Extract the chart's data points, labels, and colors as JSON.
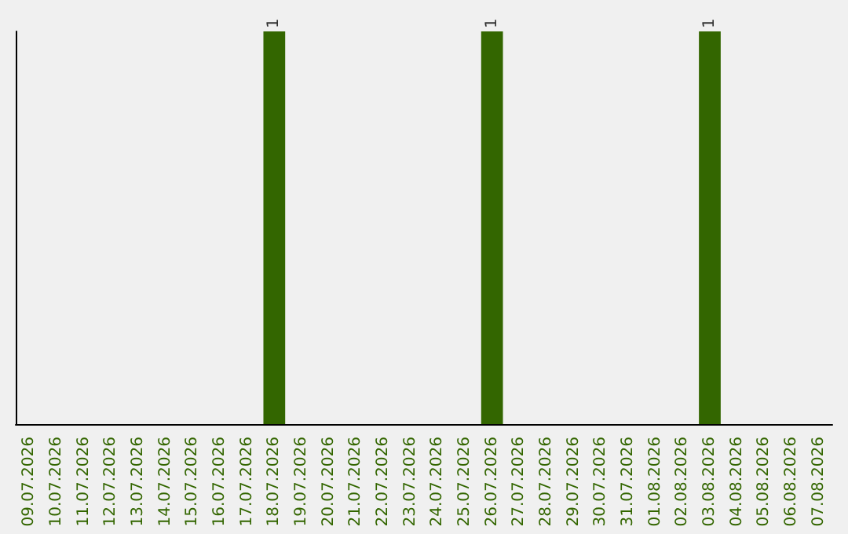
{
  "chart_data": {
    "type": "bar",
    "categories": [
      "09.07.2026",
      "10.07.2026",
      "11.07.2026",
      "12.07.2026",
      "13.07.2026",
      "14.07.2026",
      "15.07.2026",
      "16.07.2026",
      "17.07.2026",
      "18.07.2026",
      "19.07.2026",
      "20.07.2026",
      "21.07.2026",
      "22.07.2026",
      "23.07.2026",
      "24.07.2026",
      "25.07.2026",
      "26.07.2026",
      "27.07.2026",
      "28.07.2026",
      "29.07.2026",
      "30.07.2026",
      "31.07.2026",
      "01.08.2026",
      "02.08.2026",
      "03.08.2026",
      "04.08.2026",
      "05.08.2026",
      "06.08.2026",
      "07.08.2026"
    ],
    "values": [
      0,
      0,
      0,
      0,
      0,
      0,
      0,
      0,
      0,
      1,
      0,
      0,
      0,
      0,
      0,
      0,
      0,
      1,
      0,
      0,
      0,
      0,
      0,
      0,
      0,
      1,
      0,
      0,
      0,
      0
    ],
    "value_labels": [
      null,
      null,
      null,
      null,
      null,
      null,
      null,
      null,
      null,
      "1",
      null,
      null,
      null,
      null,
      null,
      null,
      null,
      "1",
      null,
      null,
      null,
      null,
      null,
      null,
      null,
      "1",
      null,
      null,
      null,
      null
    ],
    "color": "#336600",
    "tick_labels": "x"
  }
}
